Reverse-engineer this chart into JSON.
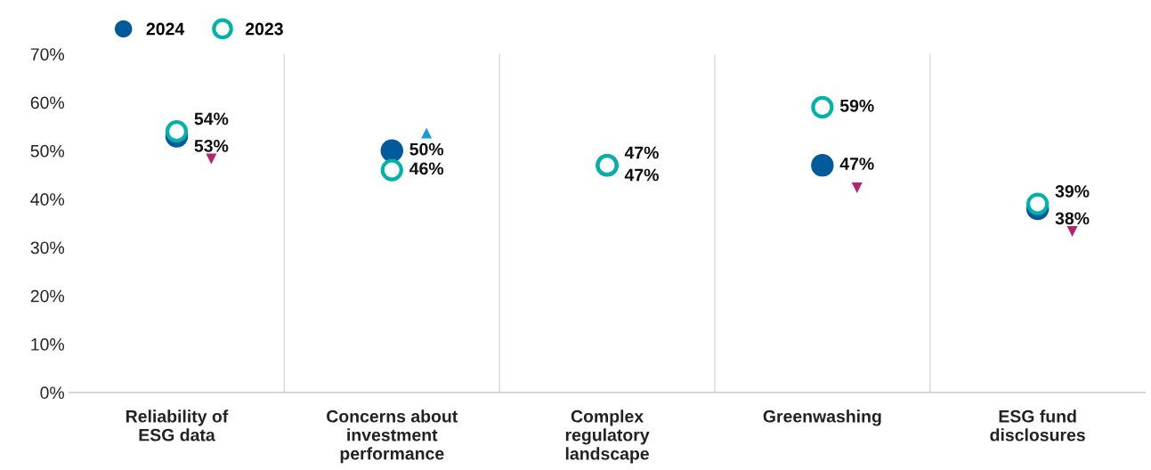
{
  "chart_data": {
    "type": "scatter",
    "categories": [
      "Reliability of\nESG data",
      "Concerns about\ninvestment\nperformance",
      "Complex\nregulatory\nlandscape",
      "Greenwashing",
      "ESG fund\ndisclosures"
    ],
    "series": [
      {
        "name": "2024",
        "color": "#005a9c",
        "marker": "circle",
        "values": [
          53,
          50,
          47,
          47,
          38
        ],
        "value_labels": [
          "53%",
          "50%",
          "47%",
          "47%",
          "38%"
        ]
      },
      {
        "name": "2023",
        "color": "#00b2a9",
        "marker": "circle",
        "values": [
          54,
          46,
          47,
          59,
          39
        ],
        "value_labels": [
          "54%",
          "46%",
          "47%",
          "59%",
          "39%"
        ]
      }
    ],
    "ylim": [
      0,
      70
    ],
    "yticks": [
      {
        "value": 0,
        "label": "0%"
      },
      {
        "value": 10,
        "label": "10%"
      },
      {
        "value": 20,
        "label": "20%"
      },
      {
        "value": 30,
        "label": "30%"
      },
      {
        "value": 40,
        "label": "40%"
      },
      {
        "value": 50,
        "label": "50%"
      },
      {
        "value": 60,
        "label": "60%"
      },
      {
        "value": 70,
        "label": "70%"
      }
    ],
    "grid": "x",
    "legend": "top left"
  }
}
